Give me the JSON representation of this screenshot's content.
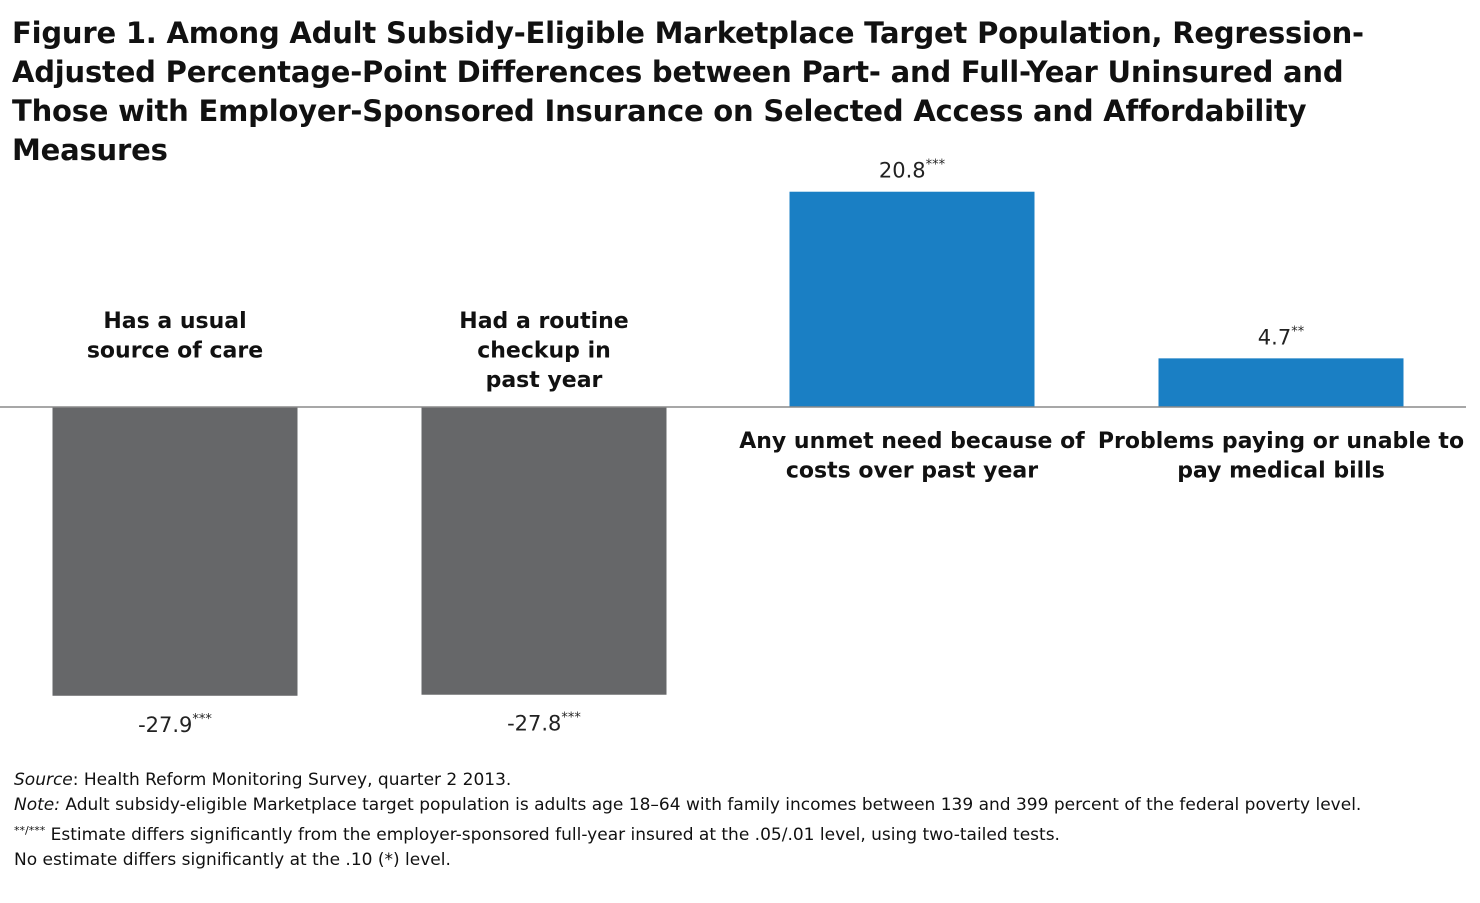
{
  "title": "Figure 1. Among Adult Subsidy-Eligible Marketplace Target Population, Regression-Adjusted Percentage-Point Differences between Part- and Full-Year Uninsured and Those with Employer-Sponsored Insurance on Selected Access and Affordability Measures",
  "chart_data": {
    "type": "bar",
    "categories": [
      [
        "Has a usual",
        "source of care"
      ],
      [
        "Had a routine",
        "checkup in",
        "past year"
      ],
      [
        "Any unmet need because of",
        "costs over past year"
      ],
      [
        "Problems paying or unable to",
        "pay medical bills"
      ]
    ],
    "values": [
      -27.9,
      -27.8,
      20.8,
      4.7
    ],
    "value_labels": [
      "-27.9",
      "-27.8",
      "20.8",
      "4.7"
    ],
    "significance": [
      "***",
      "***",
      "***",
      "**"
    ],
    "colors": [
      "#666769",
      "#666769",
      "#1a7fc4",
      "#1a7fc4"
    ],
    "ylim": [
      -30,
      22
    ],
    "grid": false,
    "legend": "none"
  },
  "notes": {
    "source_label": "Source",
    "source_text": ": Health Reform Monitoring Survey, quarter 2 2013.",
    "note_label": "Note:",
    "note_text": " Adult subsidy-eligible Marketplace target population is adults age 18–64 with family incomes between 139 and 399 percent of the federal poverty level.",
    "sig_marks": "**/***",
    "sig_text": " Estimate differs significantly from the employer-sponsored full-year insured at the .05/.01 level,  using  two-tailed tests.",
    "none_text": "No estimate differs significantly at the .10 (*) level."
  }
}
